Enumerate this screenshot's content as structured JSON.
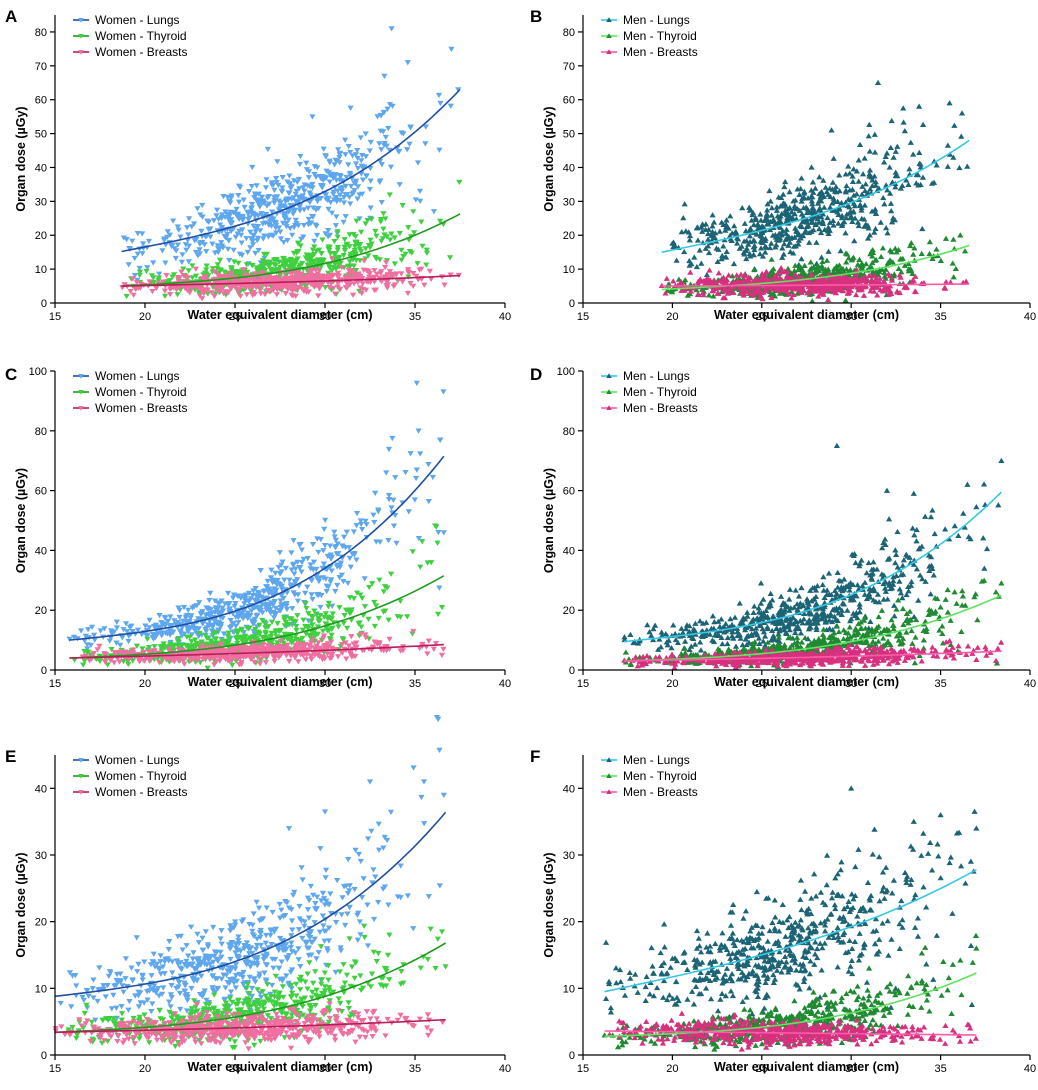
{
  "figure": {
    "description_title": ""
  },
  "chart_data": [
    {
      "panel_label": "A",
      "type": "scatter",
      "xlabel": "Water equivalent diameter (cm)",
      "ylabel": "Organ dose (µGy)",
      "xlim": [
        15,
        40
      ],
      "ylim": [
        0,
        85
      ],
      "xticks": [
        15,
        20,
        25,
        30,
        35,
        40
      ],
      "yticks": [
        0,
        10,
        20,
        30,
        40,
        50,
        60,
        70,
        80
      ],
      "marker": "down-triangle",
      "xrange": [
        18.7,
        37.5
      ],
      "series": [
        {
          "name": "Women - Lungs",
          "point_color": "#5ea6ee",
          "line_color": "#1f4fa3",
          "fit_start": 15.2,
          "fit_end": 63.0,
          "curve": 0.6,
          "spread": 0.2,
          "outliers": [
            [
              33.7,
              81
            ],
            [
              34.6,
              71
            ],
            [
              33.3,
              67
            ],
            [
              37.4,
              63
            ],
            [
              29.3,
              55
            ],
            [
              35.6,
              52
            ]
          ]
        },
        {
          "name": "Women - Thyroid",
          "point_color": "#3fd03f",
          "line_color": "#1e9a1e",
          "fit_start": 5.0,
          "fit_end": 26.3,
          "curve": 0.75,
          "spread": 0.3,
          "outliers": [
            [
              33.6,
              32
            ],
            [
              34.9,
              27
            ],
            [
              33.1,
              24
            ]
          ]
        },
        {
          "name": "Women - Breasts",
          "point_color": "#f06ea0",
          "line_color": "#b81d5a",
          "fit_start": 5.0,
          "fit_end": 8.1,
          "curve": 0.3,
          "spread": 0.25,
          "outliers": [
            [
              30.4,
              13
            ],
            [
              33.4,
              12
            ]
          ]
        }
      ]
    },
    {
      "panel_label": "B",
      "type": "scatter",
      "xlabel": "Water equivalent diameter (cm)",
      "ylabel": "Organ dose (µGy)",
      "xlim": [
        15,
        40
      ],
      "ylim": [
        0,
        85
      ],
      "xticks": [
        15,
        20,
        25,
        30,
        35,
        40
      ],
      "yticks": [
        0,
        10,
        20,
        30,
        40,
        50,
        60,
        70,
        80
      ],
      "marker": "up-triangle",
      "xrange": [
        19.4,
        36.6
      ],
      "series": [
        {
          "name": "Men - Lungs",
          "point_color": "#1c6475",
          "line_color": "#35c7e6",
          "fit_start": 15.0,
          "fit_end": 48.0,
          "curve": 0.45,
          "spread": 0.22,
          "outliers": [
            [
              31.5,
              65
            ],
            [
              35.5,
              59
            ],
            [
              33.8,
              58
            ],
            [
              36.2,
              56
            ],
            [
              28.9,
              51
            ]
          ]
        },
        {
          "name": "Men - Thyroid",
          "point_color": "#1f8a32",
          "line_color": "#5fe35f",
          "fit_start": 4.0,
          "fit_end": 17.0,
          "curve": 0.65,
          "spread": 0.3,
          "outliers": [
            [
              36.1,
              20
            ],
            [
              35.3,
              19
            ],
            [
              34.4,
              18
            ]
          ]
        },
        {
          "name": "Men - Breasts",
          "point_color": "#d6307f",
          "line_color": "#ff5aa8",
          "fit_start": 5.0,
          "fit_end": 5.6,
          "curve": 0.2,
          "spread": 0.3,
          "outliers": [
            [
              21.0,
              9
            ],
            [
              31.0,
              8
            ]
          ]
        }
      ]
    },
    {
      "panel_label": "C",
      "type": "scatter",
      "xlabel": "Water equivalent diameter (cm)",
      "ylabel": "Organ dose (µGy)",
      "xlim": [
        15,
        40
      ],
      "ylim": [
        0,
        100
      ],
      "xticks": [
        15,
        20,
        25,
        30,
        35,
        40
      ],
      "yticks": [
        0,
        20,
        40,
        60,
        80,
        100
      ],
      "marker": "down-triangle",
      "xrange": [
        15.8,
        36.6
      ],
      "series": [
        {
          "name": "Women - Lungs",
          "point_color": "#5ea6ee",
          "line_color": "#1f4fa3",
          "fit_start": 10.0,
          "fit_end": 71.5,
          "curve": 0.8,
          "spread": 0.2,
          "outliers": [
            [
              35.1,
              96
            ],
            [
              35.2,
              80
            ],
            [
              36.4,
              77
            ],
            [
              33.4,
              66
            ],
            [
              36.6,
              46
            ]
          ]
        },
        {
          "name": "Women - Thyroid",
          "point_color": "#3fd03f",
          "line_color": "#1e9a1e",
          "fit_start": 4.0,
          "fit_end": 31.5,
          "curve": 0.8,
          "spread": 0.3,
          "outliers": [
            [
              35.4,
              43
            ],
            [
              35.9,
              36
            ],
            [
              36.5,
              21
            ]
          ]
        },
        {
          "name": "Women - Breasts",
          "point_color": "#f06ea0",
          "line_color": "#b81d5a",
          "fit_start": 4.0,
          "fit_end": 8.5,
          "curve": 0.3,
          "spread": 0.25,
          "outliers": [
            [
              34.9,
              13
            ],
            [
              32.0,
              12
            ],
            [
              36.5,
              5
            ]
          ]
        }
      ]
    },
    {
      "panel_label": "D",
      "type": "scatter",
      "xlabel": "Water equivalent diameter (cm)",
      "ylabel": "Organ dose (µGy)",
      "xlim": [
        15,
        40
      ],
      "ylim": [
        0,
        100
      ],
      "xticks": [
        15,
        20,
        25,
        30,
        35,
        40
      ],
      "yticks": [
        0,
        20,
        40,
        60,
        80,
        100
      ],
      "marker": "up-triangle",
      "xrange": [
        17.3,
        38.4
      ],
      "series": [
        {
          "name": "Men - Lungs",
          "point_color": "#1c6475",
          "line_color": "#35c7e6",
          "fit_start": 9.5,
          "fit_end": 59.5,
          "curve": 0.75,
          "spread": 0.22,
          "outliers": [
            [
              29.2,
              75
            ],
            [
              38.4,
              70
            ],
            [
              32.0,
              60
            ],
            [
              33.5,
              59
            ],
            [
              36.5,
              62
            ]
          ]
        },
        {
          "name": "Men - Thyroid",
          "point_color": "#1f8a32",
          "line_color": "#5fe35f",
          "fit_start": 3.0,
          "fit_end": 25.0,
          "curve": 0.8,
          "spread": 0.3,
          "outliers": [
            [
              38.4,
              29
            ],
            [
              35.0,
              21
            ]
          ]
        },
        {
          "name": "Men - Breasts",
          "point_color": "#d6307f",
          "line_color": "#ff5aa8",
          "fit_start": 3.0,
          "fit_end": 6.3,
          "curve": 0.3,
          "spread": 0.3,
          "outliers": [
            [
              36.0,
              8
            ]
          ]
        }
      ]
    },
    {
      "panel_label": "E",
      "type": "scatter",
      "xlabel": "Water equivalent diameter (cm)",
      "ylabel": "Organ dose (µGy)",
      "xlim": [
        15,
        40
      ],
      "ylim": [
        0,
        45
      ],
      "xticks": [
        15,
        20,
        25,
        30,
        35,
        40
      ],
      "yticks": [
        0,
        10,
        20,
        30,
        40
      ],
      "marker": "down-triangle",
      "xrange": [
        15.0,
        36.7
      ],
      "series": [
        {
          "name": "Women - Lungs",
          "point_color": "#5ea6ee",
          "line_color": "#1f4fa3",
          "fit_start": 8.8,
          "fit_end": 36.4,
          "curve": 0.75,
          "spread": 0.22,
          "outliers": [
            [
              32.5,
              41
            ],
            [
              35.5,
              41
            ],
            [
              36.6,
              39
            ],
            [
              30.0,
              36.5
            ],
            [
              28.0,
              34
            ]
          ]
        },
        {
          "name": "Women - Thyroid",
          "point_color": "#3fd03f",
          "line_color": "#1e9a1e",
          "fit_start": 3.4,
          "fit_end": 16.8,
          "curve": 0.8,
          "spread": 0.3,
          "outliers": [
            [
              36.5,
              18.5
            ],
            [
              33.5,
              15
            ]
          ]
        },
        {
          "name": "Women - Breasts",
          "point_color": "#f06ea0",
          "line_color": "#b81d5a",
          "fit_start": 3.4,
          "fit_end": 5.3,
          "curve": 0.3,
          "spread": 0.25,
          "outliers": [
            [
              28.0,
              7
            ],
            [
              34.2,
              6
            ]
          ]
        }
      ]
    },
    {
      "panel_label": "F",
      "type": "scatter",
      "xlabel": "Water equivalent diameter (cm)",
      "ylabel": "Organ dose (µGy)",
      "xlim": [
        15,
        40
      ],
      "ylim": [
        0,
        45
      ],
      "xticks": [
        15,
        20,
        25,
        30,
        35,
        40
      ],
      "yticks": [
        0,
        10,
        20,
        30,
        40
      ],
      "marker": "up-triangle",
      "xrange": [
        16.2,
        37.0
      ],
      "series": [
        {
          "name": "Men - Lungs",
          "point_color": "#1c6475",
          "line_color": "#35c7e6",
          "fit_start": 9.5,
          "fit_end": 27.8,
          "curve": 0.35,
          "spread": 0.24,
          "outliers": [
            [
              30.0,
              40
            ],
            [
              36.9,
              36.5
            ],
            [
              35.0,
              36
            ],
            [
              33.5,
              35
            ],
            [
              37.0,
              34
            ]
          ]
        },
        {
          "name": "Men - Thyroid",
          "point_color": "#1f8a32",
          "line_color": "#5fe35f",
          "fit_start": 2.8,
          "fit_end": 12.3,
          "curve": 0.8,
          "spread": 0.3,
          "outliers": [
            [
              37.0,
              16
            ],
            [
              31.0,
              13
            ]
          ]
        },
        {
          "name": "Men - Breasts",
          "point_color": "#d6307f",
          "line_color": "#ff5aa8",
          "fit_start": 3.6,
          "fit_end": 3.0,
          "curve": 0.0,
          "spread": 0.25,
          "outliers": [
            [
              23.5,
              6
            ]
          ]
        }
      ]
    }
  ]
}
